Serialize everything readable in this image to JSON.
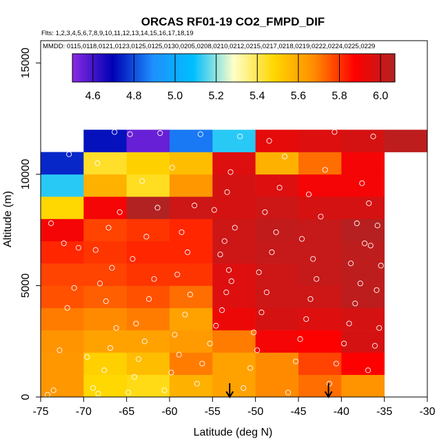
{
  "chart_data": {
    "type": "heatmap",
    "title": "ORCAS RF01-19 CO2_FMPD_DIF",
    "flights_label": "Flts: 1,2,3,4,5,6,7,8,9,10,11,12,13,14,15,16,17,18,19",
    "dates_label": "MMDD: 0115,0118,0121,0123,0125,0125,0130,0205,0208,0210,0212,0215,0217,0218,0219,0222,0224,0225,0229",
    "xlabel": "Latitude (deg N)",
    "ylabel": "Altitude (m)",
    "xlim": [
      -75,
      -30
    ],
    "ylim": [
      0,
      16000
    ],
    "x_ticks": [
      -75,
      -70,
      -65,
      -60,
      -55,
      -50,
      -45,
      -40,
      -35,
      -30
    ],
    "x_tick_labels": [
      "-75",
      "-70",
      "-65",
      "-60",
      "-55",
      "-50",
      "-45",
      "-40",
      "-35",
      "-30"
    ],
    "y_ticks": [
      0,
      5000,
      10000,
      15000
    ],
    "y_tick_labels": [
      "0",
      "5000",
      "10000",
      "15000"
    ],
    "colorbar": {
      "min": 4.5,
      "max": 6.07,
      "ticks": [
        4.6,
        4.8,
        5.0,
        5.2,
        5.4,
        5.6,
        5.8,
        6.0
      ],
      "tick_labels": [
        "4.6",
        "4.8",
        "5.0",
        "5.2",
        "5.4",
        "5.6",
        "5.8",
        "6.0"
      ],
      "colors": [
        "#8a2be2",
        "#0000b4",
        "#1e90ff",
        "#00bfff",
        "#ffffc8",
        "#ffd700",
        "#ff8c00",
        "#ff0000",
        "#b22222"
      ]
    },
    "lat_bins": [
      -75,
      -70,
      -65,
      -60,
      -55,
      -50,
      -45,
      -40,
      -35,
      -30
    ],
    "alt_bins": [
      0,
      1000,
      2000,
      3000,
      4000,
      5000,
      6000,
      7000,
      8000,
      9000,
      10000,
      11000,
      12000
    ],
    "cells": [
      [
        5.65,
        5.48,
        5.46,
        5.58,
        5.62,
        5.68,
        5.72,
        5.66,
        null
      ],
      [
        5.65,
        5.5,
        5.55,
        5.7,
        5.62,
        5.68,
        5.78,
        5.88,
        null
      ],
      [
        5.66,
        5.62,
        5.62,
        5.64,
        5.7,
        5.9,
        5.88,
        5.98,
        null
      ],
      [
        5.7,
        5.68,
        5.7,
        5.62,
        5.92,
        5.98,
        5.96,
        5.98,
        null
      ],
      [
        5.76,
        5.74,
        5.76,
        5.72,
        5.96,
        6.0,
        6.0,
        6.04,
        null
      ],
      [
        5.78,
        5.78,
        5.8,
        5.8,
        5.96,
        6.0,
        6.02,
        6.04,
        null
      ],
      [
        5.82,
        5.8,
        5.82,
        5.82,
        6.0,
        6.02,
        6.02,
        6.04,
        null
      ],
      [
        5.9,
        5.78,
        5.8,
        5.82,
        6.0,
        6.03,
        6.02,
        6.06,
        null
      ],
      [
        5.48,
        5.9,
        6.07,
        6.0,
        5.98,
        6.0,
        5.98,
        5.98,
        null
      ],
      [
        5.12,
        5.58,
        5.45,
        5.65,
        5.98,
        5.96,
        5.9,
        5.9,
        null
      ],
      [
        4.75,
        5.44,
        5.5,
        5.55,
        5.96,
        5.58,
        5.72,
        5.9,
        null
      ],
      [
        null,
        4.72,
        4.55,
        4.86,
        5.12,
        5.94,
        5.96,
        5.98,
        6.04
      ]
    ],
    "samples": [
      [
        -74.2,
        100
      ],
      [
        -73.5,
        300
      ],
      [
        -72.8,
        2100
      ],
      [
        -71.9,
        4000
      ],
      [
        -71.1,
        4900
      ],
      [
        -70.6,
        6700
      ],
      [
        -72.3,
        6900
      ],
      [
        -73.8,
        7800
      ],
      [
        -71.7,
        10900
      ],
      [
        -69.6,
        1800
      ],
      [
        -68.9,
        400
      ],
      [
        -68.3,
        150
      ],
      [
        -67.6,
        1200
      ],
      [
        -66.9,
        2200
      ],
      [
        -66.2,
        3100
      ],
      [
        -67.4,
        4300
      ],
      [
        -68.1,
        5100
      ],
      [
        -66.7,
        5800
      ],
      [
        -68.6,
        6600
      ],
      [
        -67.1,
        7600
      ],
      [
        -65.8,
        8300
      ],
      [
        -68.4,
        10500
      ],
      [
        -66.4,
        11900
      ],
      [
        -64.8,
        200
      ],
      [
        -64.1,
        900
      ],
      [
        -63.6,
        1700
      ],
      [
        -62.9,
        2500
      ],
      [
        -63.9,
        3300
      ],
      [
        -62.4,
        4400
      ],
      [
        -61.8,
        5300
      ],
      [
        -64.3,
        6200
      ],
      [
        -62.7,
        7200
      ],
      [
        -61.4,
        8500
      ],
      [
        -63.2,
        9700
      ],
      [
        -64.6,
        11800
      ],
      [
        -61.1,
        11850
      ],
      [
        -60.6,
        300
      ],
      [
        -59.8,
        1100
      ],
      [
        -58.9,
        1900
      ],
      [
        -59.4,
        2800
      ],
      [
        -58.2,
        3700
      ],
      [
        -57.6,
        4600
      ],
      [
        -59.1,
        5500
      ],
      [
        -57.9,
        6500
      ],
      [
        -58.6,
        7400
      ],
      [
        -57.1,
        8600
      ],
      [
        -59.7,
        10300
      ],
      [
        -56.4,
        11800
      ],
      [
        -56.8,
        600
      ],
      [
        -56.2,
        1500
      ],
      [
        -55.3,
        2400
      ],
      [
        -54.6,
        3200
      ],
      [
        -53.9,
        3900
      ],
      [
        -53.4,
        4700
      ],
      [
        -52.8,
        5200
      ],
      [
        -53.1,
        5700
      ],
      [
        -54.1,
        6400
      ],
      [
        -53.6,
        7000
      ],
      [
        -52.4,
        7600
      ],
      [
        -54.8,
        8400
      ],
      [
        -53.3,
        9200
      ],
      [
        -52.9,
        10100
      ],
      [
        -51.8,
        11700
      ],
      [
        -51.4,
        400
      ],
      [
        -50.6,
        1300
      ],
      [
        -49.8,
        2100
      ],
      [
        -50.2,
        2900
      ],
      [
        -49.3,
        3800
      ],
      [
        -48.7,
        4700
      ],
      [
        -49.6,
        5600
      ],
      [
        -48.1,
        6500
      ],
      [
        -47.6,
        7400
      ],
      [
        -48.9,
        8300
      ],
      [
        -47.2,
        9400
      ],
      [
        -46.6,
        10800
      ],
      [
        -48.4,
        11500
      ],
      [
        -46.2,
        200
      ],
      [
        -45.3,
        1600
      ],
      [
        -44.8,
        2600
      ],
      [
        -44.1,
        3500
      ],
      [
        -43.6,
        4400
      ],
      [
        -42.9,
        5300
      ],
      [
        -43.3,
        6200
      ],
      [
        -44.6,
        7100
      ],
      [
        -42.4,
        8100
      ],
      [
        -43.8,
        9100
      ],
      [
        -41.9,
        10200
      ],
      [
        -40.8,
        11900
      ],
      [
        -41.4,
        600
      ],
      [
        -40.6,
        1500
      ],
      [
        -39.7,
        2400
      ],
      [
        -39.1,
        3300
      ],
      [
        -38.4,
        4200
      ],
      [
        -37.8,
        5100
      ],
      [
        -38.9,
        6000
      ],
      [
        -37.3,
        6900
      ],
      [
        -38.2,
        7800
      ],
      [
        -36.8,
        8700
      ],
      [
        -37.6,
        9600
      ],
      [
        -36.3,
        11700
      ],
      [
        -36.9,
        1200
      ],
      [
        -36.1,
        2300
      ],
      [
        -35.6,
        3100
      ],
      [
        -35.9,
        4800
      ],
      [
        -35.4,
        5900
      ],
      [
        -36.6,
        6800
      ],
      [
        -35.8,
        7700
      ]
    ],
    "arrows": [
      -53,
      -41.5
    ]
  }
}
